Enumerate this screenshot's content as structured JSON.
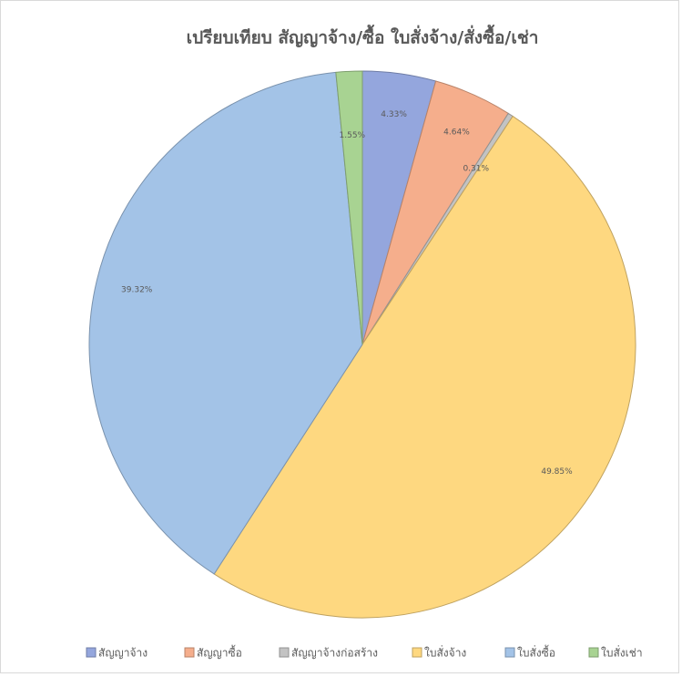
{
  "chart_data": {
    "type": "pie",
    "title": "เปรียบเทียบ สัญญาจ้าง/ซื้อ ใบสั่งจ้าง/สั่งซื้อ/เช่า",
    "categories": [
      "สัญญาจ้าง",
      "สัญญาซื้อ",
      "สัญญาจ้างก่อสร้าง",
      "ใบสั่งจ้าง",
      "ใบสั่งซื้อ",
      "ใบสั่งเช่า"
    ],
    "values": [
      4.33,
      4.64,
      0.31,
      49.85,
      39.32,
      1.55
    ],
    "value_labels": [
      "4.33%",
      "4.64%",
      "0.31%",
      "49.85%",
      "39.32%",
      "1.55%"
    ],
    "colors": [
      "#94a6dd",
      "#f5ae8c",
      "#c3c3c3",
      "#fed880",
      "#a3c3e7",
      "#a8d392"
    ],
    "legend": "bottom"
  }
}
